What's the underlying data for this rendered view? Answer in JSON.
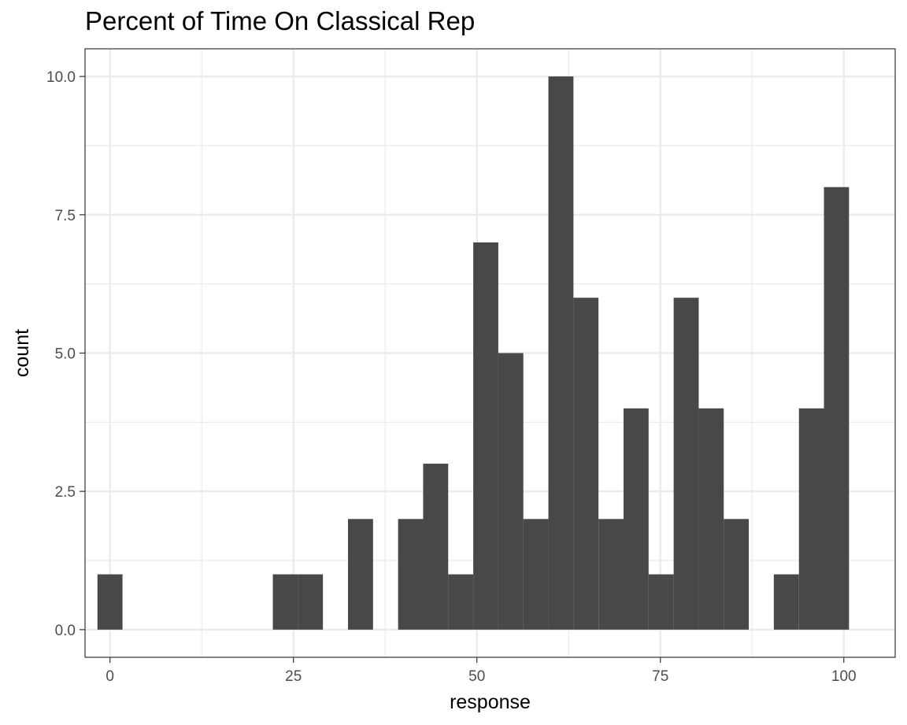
{
  "chart_data": {
    "type": "bar",
    "title": "Percent of Time On Classical Rep",
    "xlabel": "response",
    "ylabel": "count",
    "xlim": [
      -3.4,
      107.0
    ],
    "ylim": [
      -0.5,
      10.5
    ],
    "x_ticks": [
      "0",
      "25",
      "50",
      "75",
      "100"
    ],
    "x_tick_values": [
      0,
      25,
      50,
      75,
      100
    ],
    "y_ticks": [
      "0.0",
      "2.5",
      "5.0",
      "7.5",
      "10.0"
    ],
    "y_tick_values": [
      0,
      2.5,
      5,
      7.5,
      10
    ],
    "bin_width": 3.414,
    "bin_start": -1.707,
    "bins": [
      {
        "center": 0.0,
        "count": 1
      },
      {
        "center": 3.41,
        "count": 0
      },
      {
        "center": 6.83,
        "count": 0
      },
      {
        "center": 10.24,
        "count": 0
      },
      {
        "center": 13.66,
        "count": 0
      },
      {
        "center": 17.07,
        "count": 0
      },
      {
        "center": 20.48,
        "count": 0
      },
      {
        "center": 23.9,
        "count": 1
      },
      {
        "center": 27.31,
        "count": 1
      },
      {
        "center": 30.72,
        "count": 0
      },
      {
        "center": 34.14,
        "count": 2
      },
      {
        "center": 37.55,
        "count": 0
      },
      {
        "center": 40.97,
        "count": 2
      },
      {
        "center": 44.38,
        "count": 3
      },
      {
        "center": 47.79,
        "count": 1
      },
      {
        "center": 51.21,
        "count": 7
      },
      {
        "center": 54.62,
        "count": 5
      },
      {
        "center": 58.03,
        "count": 2
      },
      {
        "center": 61.45,
        "count": 10
      },
      {
        "center": 64.86,
        "count": 6
      },
      {
        "center": 68.28,
        "count": 2
      },
      {
        "center": 71.69,
        "count": 4
      },
      {
        "center": 75.1,
        "count": 1
      },
      {
        "center": 78.52,
        "count": 6
      },
      {
        "center": 81.93,
        "count": 4
      },
      {
        "center": 85.34,
        "count": 2
      },
      {
        "center": 88.76,
        "count": 0
      },
      {
        "center": 92.17,
        "count": 1
      },
      {
        "center": 95.59,
        "count": 4
      },
      {
        "center": 99.0,
        "count": 8
      }
    ],
    "grid": true,
    "bar_color": "#484848",
    "grid_color": "#ebebeb",
    "panel_border_color": "#333333"
  }
}
